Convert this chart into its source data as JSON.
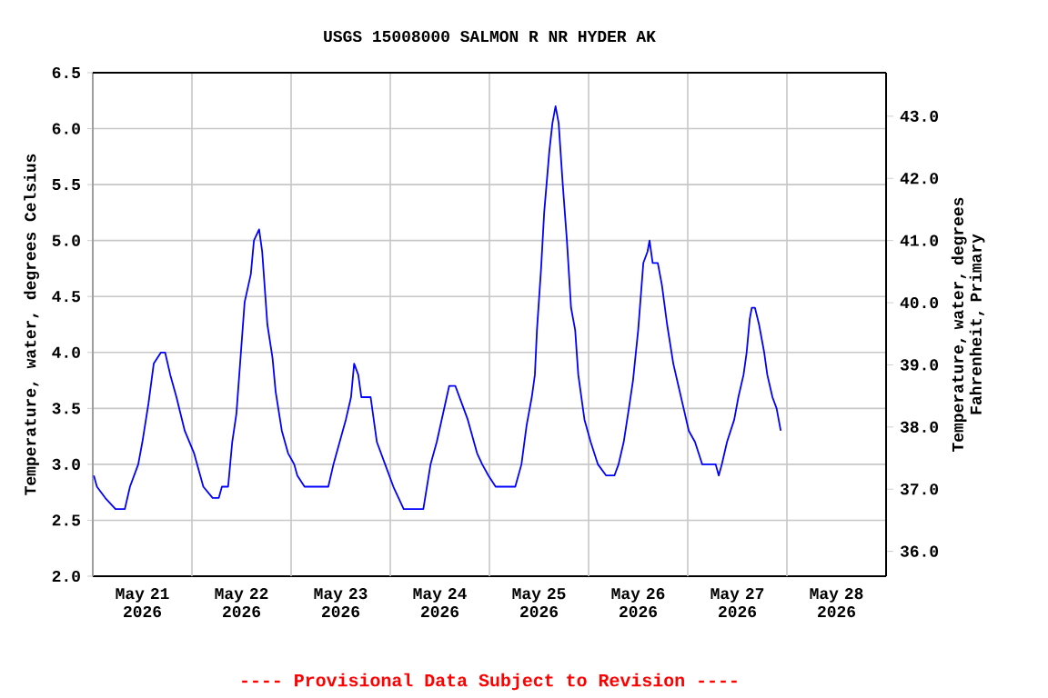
{
  "chart_data": {
    "type": "line",
    "title": "USGS 15008000 SALMON R NR HYDER AK",
    "ylabel": "Temperature, water, degrees Celsius",
    "y2label": "Temperature, water, degrees Fahrenheit, Primary",
    "annotations": [
      "---- Provisional Data Subject to Revision ----"
    ],
    "xlim": [
      "2026-05-21T00:00",
      "2026-05-29T00:00"
    ],
    "xticks": [
      {
        "value": "2026-05-21T00:00",
        "label": null
      },
      {
        "value": "2026-05-22T00:00",
        "label": null
      },
      {
        "value": "2026-05-23T00:00",
        "label": null
      },
      {
        "value": "2026-05-24T00:00",
        "label": null
      },
      {
        "value": "2026-05-25T00:00",
        "label": null
      },
      {
        "value": "2026-05-26T00:00",
        "label": null
      },
      {
        "value": "2026-05-27T00:00",
        "label": null
      },
      {
        "value": "2026-05-28T00:00",
        "label": null
      },
      {
        "value": "2026-05-29T00:00",
        "label": null
      },
      {
        "value": "2026-05-21T12:00",
        "label": "May 21 2026"
      },
      {
        "value": "2026-05-22T12:00",
        "label": "May 22 2026"
      },
      {
        "value": "2026-05-23T12:00",
        "label": "May 23 2026"
      },
      {
        "value": "2026-05-24T12:00",
        "label": "May 24 2026"
      },
      {
        "value": "2026-05-25T12:00",
        "label": "May 25 2026"
      },
      {
        "value": "2026-05-26T12:00",
        "label": "May 26 2026"
      },
      {
        "value": "2026-05-27T12:00",
        "label": "May 27 2026"
      },
      {
        "value": "2026-05-28T12:00",
        "label": "May 28 2026"
      }
    ],
    "ylim": [
      2.0,
      6.5
    ],
    "yticks": [
      {
        "value": 2.0,
        "label": "2.0"
      },
      {
        "value": 2.5,
        "label": "2.5"
      },
      {
        "value": 3.0,
        "label": "3.0"
      },
      {
        "value": 3.5,
        "label": "3.5"
      },
      {
        "value": 4.0,
        "label": "4.0"
      },
      {
        "value": 4.5,
        "label": "4.5"
      },
      {
        "value": 5.0,
        "label": "5.0"
      },
      {
        "value": 5.5,
        "label": "5.5"
      },
      {
        "value": 6.0,
        "label": "6.0"
      },
      {
        "value": 6.5,
        "label": "6.5"
      }
    ],
    "y2lim": [
      35.6,
      43.7
    ],
    "y2ticks": [
      {
        "value": 36,
        "label": "36.0"
      },
      {
        "value": 37,
        "label": "37.0"
      },
      {
        "value": 38,
        "label": "38.0"
      },
      {
        "value": 39,
        "label": "39.0"
      },
      {
        "value": 40,
        "label": "40.0"
      },
      {
        "value": 41,
        "label": "41.0"
      },
      {
        "value": 42,
        "label": "42.0"
      },
      {
        "value": 43,
        "label": "43.0"
      }
    ],
    "grid": true,
    "x": [
      "2026-05-21T00:15",
      "2026-05-21T01:00",
      "2026-05-21T03:00",
      "2026-05-21T05:30",
      "2026-05-21T07:45",
      "2026-05-21T09:00",
      "2026-05-21T11:00",
      "2026-05-21T12:00",
      "2026-05-21T13:30",
      "2026-05-21T14:45",
      "2026-05-21T16:30",
      "2026-05-21T17:30",
      "2026-05-21T18:45",
      "2026-05-21T20:15",
      "2026-05-21T22:15",
      "2026-05-22T00:30",
      "2026-05-22T02:45",
      "2026-05-22T05:00",
      "2026-05-22T06:30",
      "2026-05-22T07:15",
      "2026-05-22T08:45",
      "2026-05-22T09:45",
      "2026-05-22T10:45",
      "2026-05-22T11:45",
      "2026-05-22T12:45",
      "2026-05-22T14:15",
      "2026-05-22T15:00",
      "2026-05-22T16:15",
      "2026-05-22T17:00",
      "2026-05-22T18:15",
      "2026-05-22T19:30",
      "2026-05-22T20:15",
      "2026-05-22T21:45",
      "2026-05-22T23:15",
      "2026-05-23T00:45",
      "2026-05-23T01:30",
      "2026-05-23T03:15",
      "2026-05-23T09:00",
      "2026-05-23T10:15",
      "2026-05-23T11:45",
      "2026-05-23T13:15",
      "2026-05-23T14:30",
      "2026-05-23T15:15",
      "2026-05-23T16:15",
      "2026-05-23T17:00",
      "2026-05-23T19:15",
      "2026-05-23T20:45",
      "2026-05-23T22:45",
      "2026-05-24T00:45",
      "2026-05-24T03:15",
      "2026-05-24T08:00",
      "2026-05-24T09:45",
      "2026-05-24T11:15",
      "2026-05-24T12:45",
      "2026-05-24T14:15",
      "2026-05-24T15:45",
      "2026-05-24T17:15",
      "2026-05-24T18:45",
      "2026-05-24T20:15",
      "2026-05-24T21:00",
      "2026-05-24T22:15",
      "2026-05-24T23:45",
      "2026-05-25T01:30",
      "2026-05-25T06:15",
      "2026-05-25T07:45",
      "2026-05-25T09:00",
      "2026-05-25T10:15",
      "2026-05-25T11:00",
      "2026-05-25T11:30",
      "2026-05-25T12:30",
      "2026-05-25T13:15",
      "2026-05-25T14:30",
      "2026-05-25T15:15",
      "2026-05-25T16:00",
      "2026-05-25T16:45",
      "2026-05-25T17:45",
      "2026-05-25T18:45",
      "2026-05-25T19:45",
      "2026-05-25T20:45",
      "2026-05-25T21:30",
      "2026-05-25T23:00",
      "2026-05-26T00:30",
      "2026-05-26T02:15",
      "2026-05-26T04:15",
      "2026-05-26T06:15",
      "2026-05-26T07:15",
      "2026-05-26T08:30",
      "2026-05-26T09:45",
      "2026-05-26T10:45",
      "2026-05-26T12:00",
      "2026-05-26T13:15",
      "2026-05-26T14:15",
      "2026-05-26T14:45",
      "2026-05-26T15:30",
      "2026-05-26T16:45",
      "2026-05-26T17:45",
      "2026-05-26T19:00",
      "2026-05-26T20:30",
      "2026-05-26T21:45",
      "2026-05-26T23:00",
      "2026-05-27T00:15",
      "2026-05-27T01:45",
      "2026-05-27T03:30",
      "2026-05-27T06:45",
      "2026-05-27T07:30",
      "2026-05-27T08:15",
      "2026-05-27T09:30",
      "2026-05-27T11:15",
      "2026-05-27T12:15",
      "2026-05-27T13:30",
      "2026-05-27T14:15",
      "2026-05-27T15:00",
      "2026-05-27T15:30",
      "2026-05-27T16:15",
      "2026-05-27T17:15",
      "2026-05-27T18:30",
      "2026-05-27T19:15",
      "2026-05-27T20:30",
      "2026-05-27T21:30",
      "2026-05-27T22:30"
    ],
    "series": [
      {
        "color": "#0000ff",
        "values": [
          2.9,
          2.8,
          2.7,
          2.6,
          2.6,
          2.8,
          3.0,
          3.2,
          3.55,
          3.9,
          4.0,
          4.0,
          3.8,
          3.6,
          3.3,
          3.1,
          2.8,
          2.7,
          2.7,
          2.8,
          2.8,
          3.2,
          3.45,
          3.95,
          4.45,
          4.7,
          5.0,
          5.1,
          4.9,
          4.25,
          3.95,
          3.65,
          3.3,
          3.1,
          3.0,
          2.9,
          2.8,
          2.8,
          3.0,
          3.2,
          3.4,
          3.6,
          3.9,
          3.8,
          3.6,
          3.6,
          3.2,
          3.0,
          2.8,
          2.6,
          2.6,
          3.0,
          3.2,
          3.45,
          3.7,
          3.7,
          3.55,
          3.4,
          3.2,
          3.1,
          3.0,
          2.9,
          2.8,
          2.8,
          3.0,
          3.35,
          3.6,
          3.8,
          4.2,
          4.75,
          5.25,
          5.8,
          6.05,
          6.2,
          6.05,
          5.5,
          5.0,
          4.4,
          4.2,
          3.8,
          3.4,
          3.2,
          3.0,
          2.9,
          2.9,
          3.0,
          3.2,
          3.5,
          3.75,
          4.2,
          4.8,
          4.9,
          5.0,
          4.8,
          4.8,
          4.6,
          4.25,
          3.9,
          3.7,
          3.5,
          3.3,
          3.2,
          3.0,
          3.0,
          2.9,
          3.0,
          3.2,
          3.4,
          3.6,
          3.8,
          4.0,
          4.3,
          4.4,
          4.4,
          4.25,
          4.0,
          3.8,
          3.6,
          3.5,
          3.3
        ]
      }
    ]
  }
}
